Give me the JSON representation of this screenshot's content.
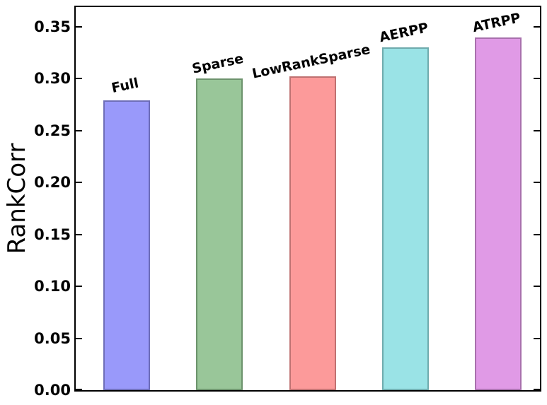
{
  "chart_data": {
    "type": "bar",
    "title": "",
    "xlabel": "",
    "ylabel": "RankCorr",
    "categories": [
      "Full",
      "Sparse",
      "LowRankSparse",
      "AERPP",
      "ATRPP"
    ],
    "values": [
      0.279,
      0.3,
      0.302,
      0.33,
      0.34
    ],
    "bar_fill_colors": [
      "#9999fa",
      "#99c699",
      "#fc9a9a",
      "#9ae3e6",
      "#e09ae6"
    ],
    "bar_edge_colors": [
      "#6e6eb8",
      "#6d936d",
      "#bf7171",
      "#6fabad",
      "#a870ad"
    ],
    "ylim": [
      0,
      0.369
    ],
    "yticks": [
      0.0,
      0.05,
      0.1,
      0.15,
      0.2,
      0.25,
      0.3,
      0.35
    ],
    "ytick_labels": [
      "0.00",
      "0.05",
      "0.10",
      "0.15",
      "0.20",
      "0.25",
      "0.30",
      "0.35"
    ],
    "grid": false,
    "legend": "none",
    "tick_direction": "in",
    "bar_label_rotation_deg": 12,
    "axis_color": "#000000"
  }
}
